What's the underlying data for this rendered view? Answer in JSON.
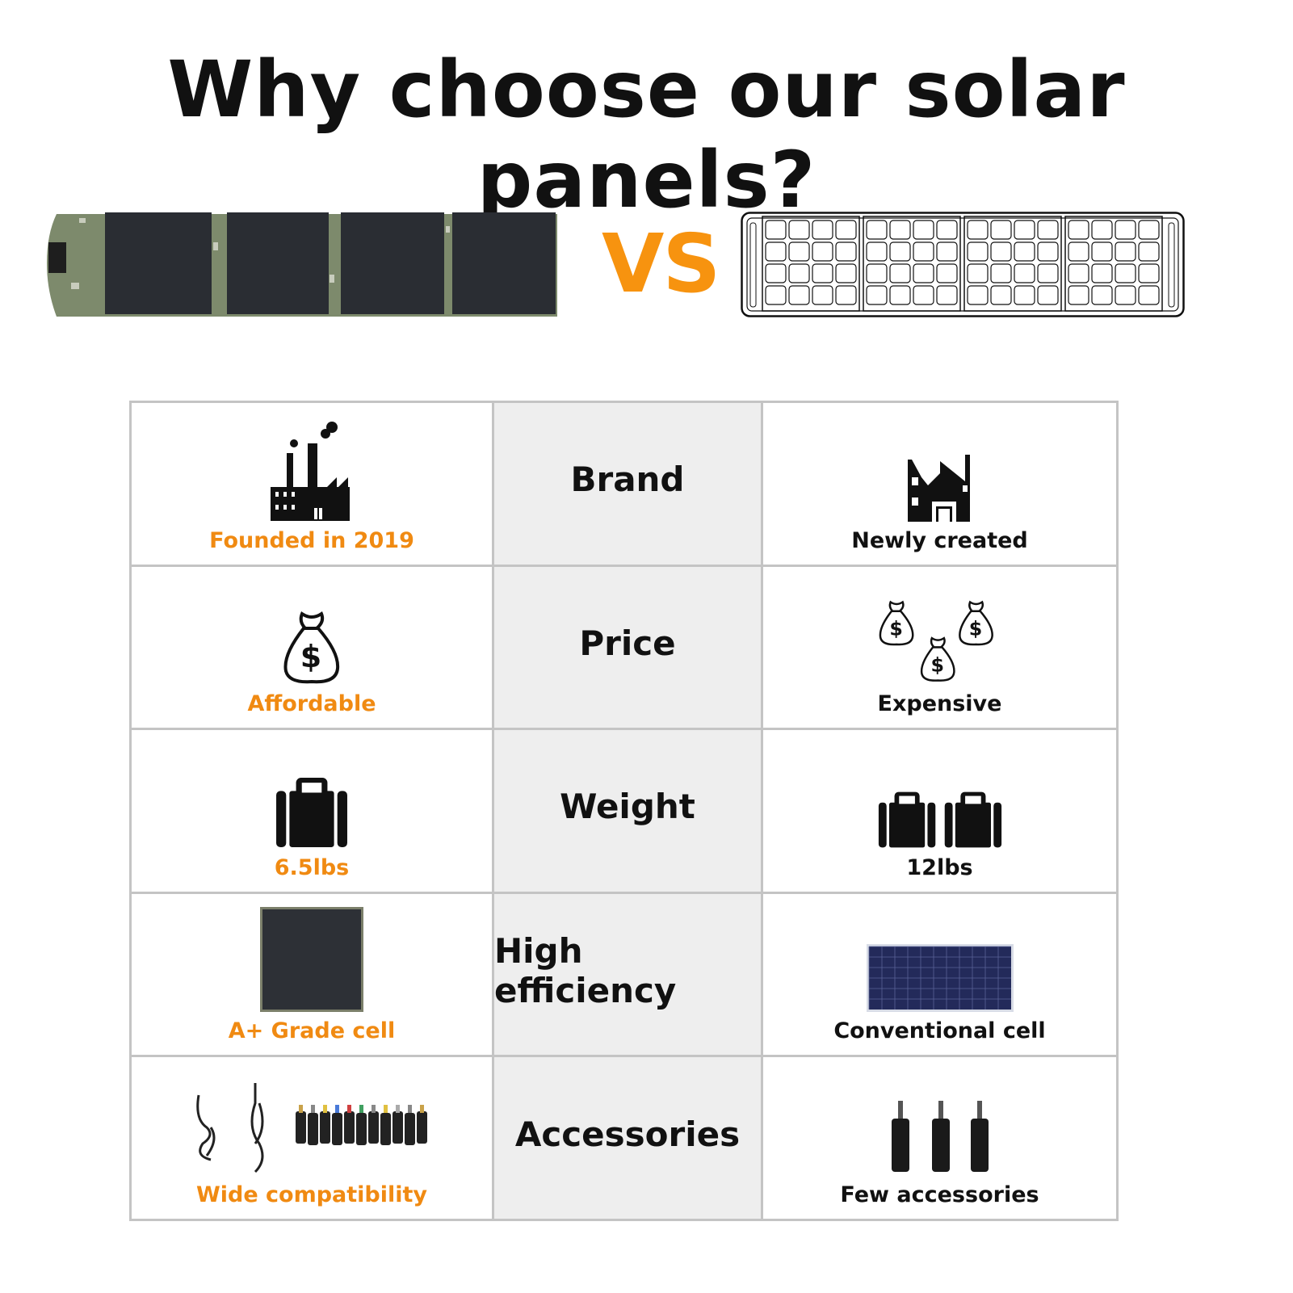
{
  "title": "Why choose our solar panels?",
  "vs_label": "VS",
  "colors": {
    "accent": "#f08a12",
    "vs": "#f7930f",
    "grid": "#c4c4c4",
    "middle_bg": "#eeeeee"
  },
  "rows": [
    {
      "feature": "Brand",
      "ours": {
        "label": "Founded in 2019",
        "icon": "factory-smoke-icon"
      },
      "theirs": {
        "label": "Newly created",
        "icon": "factory-icon"
      }
    },
    {
      "feature": "Price",
      "ours": {
        "label": "Affordable",
        "icon": "money-bag-icon"
      },
      "theirs": {
        "label": "Expensive",
        "icon": "three-money-bags-icon"
      }
    },
    {
      "feature": "Weight",
      "ours": {
        "label": "6.5lbs",
        "icon": "suitcase-icon"
      },
      "theirs": {
        "label": "12lbs",
        "icon": "two-suitcases-icon"
      }
    },
    {
      "feature": "High efficiency",
      "ours": {
        "label": "A+ Grade cell",
        "icon": "solar-cell-image"
      },
      "theirs": {
        "label": "Conventional cell",
        "icon": "conventional-panel-image"
      }
    },
    {
      "feature": "Accessories",
      "ours": {
        "label": "Wide compatibility",
        "icon": "cables-and-connectors-image"
      },
      "theirs": {
        "label": "Few accessories",
        "icon": "connectors-image"
      }
    }
  ]
}
